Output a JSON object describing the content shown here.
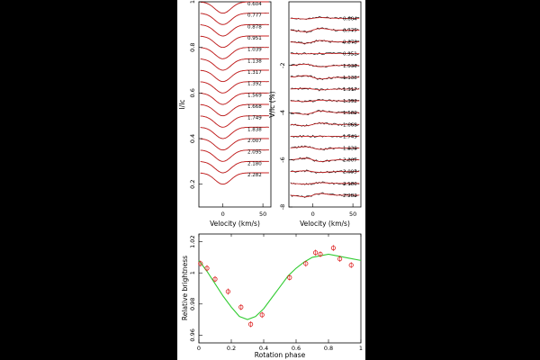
{
  "chart_data": [
    {
      "type": "line",
      "panel": "stokes-I",
      "xlabel": "Velocity (km/s)",
      "ylabel": "I/Ic",
      "xlim": [
        -30,
        60
      ],
      "ylim": [
        0.1,
        1.0
      ],
      "x_ticks": [
        "0",
        "50"
      ],
      "y_ticks": [
        "0.2",
        "0.4",
        "0.6",
        "0.8",
        "1"
      ],
      "phases": [
        "0.604",
        "0.777",
        "0.878",
        "0.951",
        "1.039",
        "1.138",
        "1.317",
        "1.392",
        "1.569",
        "1.668",
        "1.749",
        "1.838",
        "2.007",
        "2.095",
        "2.180",
        "2.282"
      ],
      "offset_step": 0.05,
      "line_depth": 0.05,
      "line_width_kms": 10,
      "colors": {
        "observed": "#000000",
        "model": "#cc2222"
      }
    },
    {
      "type": "line",
      "panel": "stokes-V",
      "xlabel": "Velocity (km/s)",
      "ylabel": "V/Ic (%)",
      "xlim": [
        -30,
        60
      ],
      "ylim": [
        -8,
        0.7
      ],
      "x_ticks": [
        "0",
        "50"
      ],
      "y_ticks": [
        "-8",
        "-6",
        "-4",
        "-2"
      ],
      "phases": [
        "0.604",
        "0.777",
        "0.878",
        "0.951",
        "1.039",
        "1.138",
        "1.317",
        "1.392",
        "1.569",
        "1.668",
        "1.749",
        "1.838",
        "2.007",
        "2.095",
        "2.180",
        "2.282"
      ],
      "offset_step": 0.5,
      "signal_amplitude": 0.12,
      "colors": {
        "observed": "#000000",
        "model": "#cc2222"
      }
    },
    {
      "type": "scatter",
      "panel": "light-curve",
      "xlabel": "Rotation phase",
      "ylabel": "Relative brightness",
      "xlim": [
        0,
        1
      ],
      "ylim": [
        0.955,
        1.025
      ],
      "x_ticks": [
        "0",
        "0.2",
        "0.4",
        "0.6",
        "0.8",
        "1"
      ],
      "y_ticks": [
        "0.96",
        "0.98",
        "1",
        "1.02"
      ],
      "points": [
        {
          "x": 0.01,
          "y": 1.006
        },
        {
          "x": 0.05,
          "y": 1.003
        },
        {
          "x": 0.1,
          "y": 0.996
        },
        {
          "x": 0.18,
          "y": 0.988
        },
        {
          "x": 0.26,
          "y": 0.978
        },
        {
          "x": 0.32,
          "y": 0.967
        },
        {
          "x": 0.39,
          "y": 0.973
        },
        {
          "x": 0.56,
          "y": 0.997
        },
        {
          "x": 0.66,
          "y": 1.006
        },
        {
          "x": 0.72,
          "y": 1.013
        },
        {
          "x": 0.75,
          "y": 1.012
        },
        {
          "x": 0.83,
          "y": 1.016
        },
        {
          "x": 0.87,
          "y": 1.009
        },
        {
          "x": 0.94,
          "y": 1.005
        }
      ],
      "model_curve": [
        {
          "x": 0.0,
          "y": 1.008
        },
        {
          "x": 0.05,
          "y": 1.001
        },
        {
          "x": 0.1,
          "y": 0.993
        },
        {
          "x": 0.15,
          "y": 0.985
        },
        {
          "x": 0.2,
          "y": 0.978
        },
        {
          "x": 0.25,
          "y": 0.972
        },
        {
          "x": 0.3,
          "y": 0.97
        },
        {
          "x": 0.35,
          "y": 0.972
        },
        {
          "x": 0.4,
          "y": 0.977
        },
        {
          "x": 0.45,
          "y": 0.984
        },
        {
          "x": 0.5,
          "y": 0.991
        },
        {
          "x": 0.55,
          "y": 0.998
        },
        {
          "x": 0.6,
          "y": 1.003
        },
        {
          "x": 0.65,
          "y": 1.007
        },
        {
          "x": 0.7,
          "y": 1.01
        },
        {
          "x": 0.75,
          "y": 1.011
        },
        {
          "x": 0.8,
          "y": 1.012
        },
        {
          "x": 0.85,
          "y": 1.011
        },
        {
          "x": 0.9,
          "y": 1.01
        },
        {
          "x": 0.95,
          "y": 1.009
        },
        {
          "x": 1.0,
          "y": 1.008
        }
      ],
      "colors": {
        "points": "#dd2222",
        "model": "#33cc33"
      }
    }
  ]
}
